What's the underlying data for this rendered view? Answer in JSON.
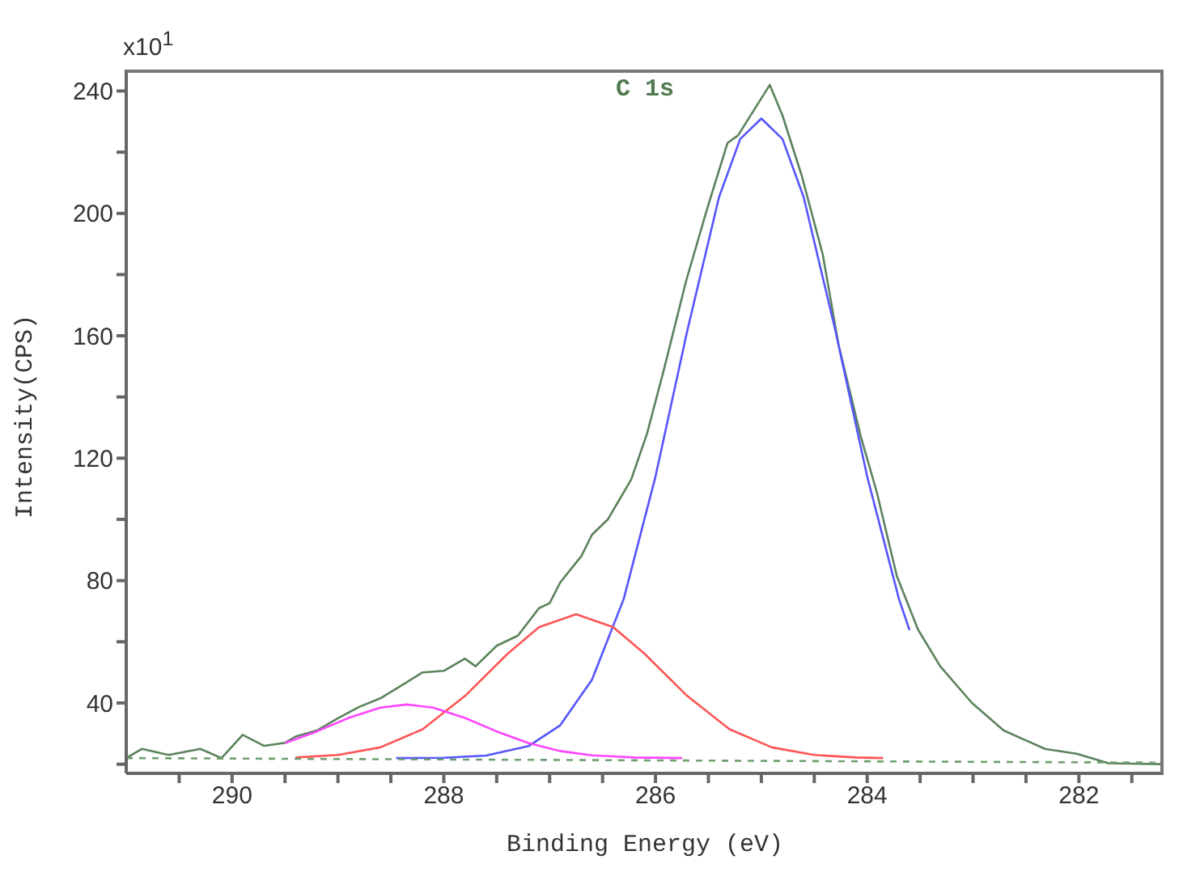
{
  "chart_data": {
    "type": "line",
    "title": "C 1s",
    "xlabel": "Binding Energy (eV)",
    "ylabel": "Intensity(CPS)",
    "annotations": [
      "x10$^{1}$"
    ],
    "xlim": [
      291,
      281.2
    ],
    "ylim": [
      17,
      247
    ],
    "xticks": [
      {
        "value": 290.5,
        "label": null
      },
      290,
      {
        "value": 289.5,
        "label": null
      },
      {
        "value": 289,
        "label": null
      },
      {
        "value": 288.5,
        "label": null
      },
      288,
      {
        "value": 287.5,
        "label": null
      },
      {
        "value": 287,
        "label": null
      },
      {
        "value": 286.5,
        "label": null
      },
      286,
      {
        "value": 285.5,
        "label": null
      },
      {
        "value": 285,
        "label": null
      },
      {
        "value": 284.5,
        "label": null
      },
      284,
      {
        "value": 283.5,
        "label": null
      },
      {
        "value": 283,
        "label": null
      },
      {
        "value": 282.5,
        "label": null
      },
      282,
      {
        "value": 281.5,
        "label": null
      }
    ],
    "yticks": [
      {
        "value": 20,
        "label": null
      },
      40,
      {
        "value": 60,
        "label": null
      },
      80,
      {
        "value": 100,
        "label": null
      },
      120,
      {
        "value": 140,
        "label": null
      },
      160,
      {
        "value": 180,
        "label": null
      },
      200,
      {
        "value": 220,
        "label": null
      },
      240
    ],
    "grid": false,
    "series": [
      {
        "color": "#5b825b",
        "x": [
          291.0,
          290.85,
          290.6,
          290.3,
          290.1,
          289.9,
          289.7,
          289.5,
          289.4,
          289.2,
          289.0,
          288.8,
          288.6,
          288.4,
          288.2,
          288.0,
          287.8,
          287.7,
          287.5,
          287.3,
          287.1,
          287.0,
          286.9,
          286.7,
          286.6,
          286.45,
          286.23,
          286.08,
          285.92,
          285.71,
          285.52,
          285.32,
          285.22,
          284.92,
          284.8,
          284.62,
          284.42,
          284.27,
          284.06,
          283.91,
          283.72,
          283.52,
          283.31,
          283.01,
          282.71,
          282.32,
          282.02,
          281.72,
          281.2
        ],
        "values": [
          22,
          25,
          23,
          25,
          22,
          29.6,
          26,
          27,
          29,
          31,
          35,
          38.7,
          41.5,
          45.7,
          50,
          50.5,
          54.5,
          52,
          58.7,
          62,
          71,
          72.6,
          79.4,
          88,
          95,
          100,
          113,
          128,
          149,
          178,
          200.6,
          223,
          225.5,
          242,
          232,
          212.5,
          186.6,
          157,
          127,
          109,
          81.5,
          64,
          52,
          40,
          31,
          25,
          23.4,
          20.3,
          20
        ]
      },
      {
        "color": "#5555ff",
        "x": [
          288.45,
          288.0,
          287.6,
          287.2,
          286.9,
          286.6,
          286.3,
          286.0,
          285.7,
          285.4,
          285.2,
          285.0,
          284.8,
          284.6,
          284.3,
          284.0,
          283.7,
          283.6
        ],
        "values": [
          22,
          22.1,
          22.8,
          25.9,
          32.7,
          47.6,
          74,
          114,
          161.6,
          205.3,
          224.3,
          231,
          224.3,
          205.3,
          161.6,
          114,
          74,
          63.8
        ]
      },
      {
        "color": "#ff5555",
        "x": [
          289.4,
          289.0,
          288.6,
          288.2,
          287.8,
          287.4,
          287.1,
          286.75,
          286.4,
          286.1,
          285.7,
          285.3,
          284.9,
          284.5,
          284.1,
          283.85
        ],
        "values": [
          22.2,
          23,
          25.5,
          31.4,
          42.3,
          56,
          64.8,
          69,
          64.8,
          56,
          42.3,
          31.4,
          25.5,
          23,
          22.2,
          22
        ]
      },
      {
        "color": "#ff44ff",
        "x": [
          289.5,
          289.2,
          288.9,
          288.6,
          288.35,
          288.1,
          287.8,
          287.5,
          287.2,
          286.9,
          286.6,
          286.2,
          285.75
        ],
        "values": [
          26.9,
          30.7,
          35.1,
          38.5,
          39.5,
          38.5,
          35.1,
          30.7,
          26.9,
          24.3,
          22.9,
          22.2,
          22
        ]
      },
      {
        "color": "#6f9f6f",
        "line_style": "dashed",
        "x": [
          291,
          281.2
        ],
        "values": [
          22,
          20.5
        ]
      }
    ]
  }
}
